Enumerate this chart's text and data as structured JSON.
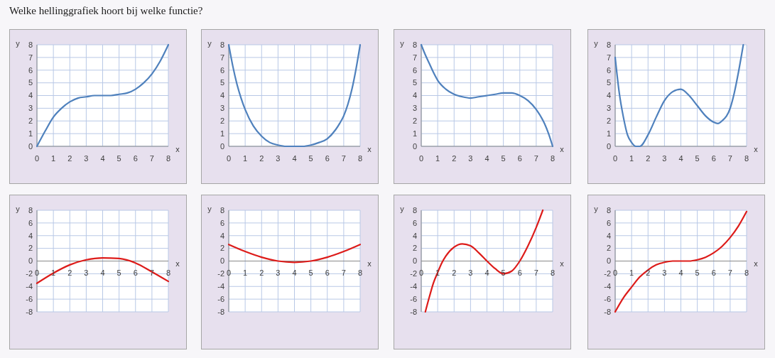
{
  "chart_data": [
    {
      "type": "other",
      "title": "Welke hellinggrafiek hoort bij welke functie?"
    },
    {
      "type": "line",
      "xlabel": "x",
      "ylabel": "y",
      "color": "#4f81bd",
      "grid": true,
      "xlim": [
        0,
        8
      ],
      "ylim": [
        0,
        8
      ],
      "xticks": [
        0,
        1,
        2,
        3,
        4,
        5,
        6,
        7,
        8
      ],
      "yticks": [
        0,
        1,
        2,
        3,
        4,
        5,
        6,
        7,
        8
      ],
      "x": [
        0,
        0.5,
        1,
        1.5,
        2,
        2.5,
        3,
        3.5,
        4,
        4.5,
        5,
        5.5,
        6,
        6.5,
        7,
        7.5,
        8
      ],
      "values": [
        0,
        1.2,
        2.3,
        3.0,
        3.5,
        3.8,
        3.9,
        4,
        4,
        4,
        4.1,
        4.2,
        4.5,
        5.0,
        5.7,
        6.7,
        8
      ]
    },
    {
      "type": "line",
      "xlabel": "x",
      "ylabel": "y",
      "color": "#4f81bd",
      "grid": true,
      "xlim": [
        0,
        8
      ],
      "ylim": [
        0,
        8
      ],
      "xticks": [
        0,
        1,
        2,
        3,
        4,
        5,
        6,
        7,
        8
      ],
      "yticks": [
        0,
        1,
        2,
        3,
        4,
        5,
        6,
        7,
        8
      ],
      "x": [
        0,
        0.25,
        0.5,
        0.75,
        1,
        1.5,
        2,
        2.5,
        3,
        3.5,
        4,
        4.5,
        5,
        5.5,
        6,
        6.5,
        6.75,
        7,
        7.25,
        7.5,
        7.75,
        8
      ],
      "values": [
        8,
        6.3,
        4.9,
        3.8,
        2.9,
        1.6,
        0.8,
        0.3,
        0.1,
        0,
        0,
        0,
        0.1,
        0.3,
        0.6,
        1.3,
        1.8,
        2.4,
        3.3,
        4.5,
        6.1,
        8
      ]
    },
    {
      "type": "line",
      "xlabel": "x",
      "ylabel": "y",
      "color": "#4f81bd",
      "grid": true,
      "xlim": [
        0,
        8
      ],
      "ylim": [
        0,
        8
      ],
      "xticks": [
        0,
        1,
        2,
        3,
        4,
        5,
        6,
        7,
        8
      ],
      "yticks": [
        0,
        1,
        2,
        3,
        4,
        5,
        6,
        7,
        8
      ],
      "x": [
        0,
        0.25,
        0.5,
        0.75,
        1,
        1.5,
        2,
        2.5,
        3,
        3.5,
        4,
        4.5,
        5,
        5.5,
        6,
        6.5,
        7,
        7.5,
        7.75,
        8
      ],
      "values": [
        8,
        7.2,
        6.5,
        5.8,
        5.2,
        4.5,
        4.1,
        3.9,
        3.8,
        3.9,
        4.0,
        4.1,
        4.2,
        4.2,
        4.0,
        3.6,
        2.9,
        1.8,
        1.0,
        0
      ]
    },
    {
      "type": "line",
      "xlabel": "x",
      "ylabel": "y",
      "color": "#4f81bd",
      "grid": true,
      "xlim": [
        0,
        8
      ],
      "ylim": [
        0,
        8
      ],
      "xticks": [
        0,
        1,
        2,
        3,
        4,
        5,
        6,
        7,
        8
      ],
      "yticks": [
        0,
        1,
        2,
        3,
        4,
        5,
        6,
        7,
        8
      ],
      "x": [
        0,
        0.25,
        0.5,
        0.75,
        1,
        1.25,
        1.5,
        2,
        2.5,
        3,
        3.5,
        4,
        4.5,
        5,
        5.5,
        6,
        6.25,
        6.5,
        7,
        7.25,
        7.5,
        7.8
      ],
      "values": [
        7,
        4.2,
        2.3,
        0.9,
        0.3,
        0,
        0,
        0.9,
        2.3,
        3.6,
        4.3,
        4.5,
        4.0,
        3.2,
        2.4,
        1.9,
        1.8,
        2.0,
        3.0,
        4.2,
        5.8,
        8
      ]
    },
    {
      "type": "line",
      "xlabel": "x",
      "ylabel": "y",
      "color": "#dd1c1a",
      "grid": true,
      "xlim": [
        0,
        8
      ],
      "ylim": [
        -8,
        8
      ],
      "xticks": [
        0,
        1,
        2,
        3,
        4,
        5,
        6,
        7,
        8
      ],
      "yticks": [
        -8,
        -6,
        -4,
        -2,
        0,
        2,
        4,
        6,
        8
      ],
      "x": [
        0,
        1,
        2,
        3,
        4,
        5,
        6,
        7,
        8
      ],
      "values": [
        -3.5,
        -1.9,
        -0.6,
        0.2,
        0.5,
        0.4,
        -0.3,
        -1.7,
        -3.2
      ]
    },
    {
      "type": "line",
      "xlabel": "x",
      "ylabel": "y",
      "color": "#dd1c1a",
      "grid": true,
      "xlim": [
        0,
        8
      ],
      "ylim": [
        -8,
        8
      ],
      "xticks": [
        0,
        1,
        2,
        3,
        4,
        5,
        6,
        7,
        8
      ],
      "yticks": [
        -8,
        -6,
        -4,
        -2,
        0,
        2,
        4,
        6,
        8
      ],
      "x": [
        0,
        1,
        2,
        3,
        4,
        5,
        6,
        7,
        8
      ],
      "values": [
        2.6,
        1.5,
        0.6,
        0,
        -0.2,
        0,
        0.6,
        1.5,
        2.6
      ]
    },
    {
      "type": "line",
      "xlabel": "x",
      "ylabel": "y",
      "color": "#dd1c1a",
      "grid": true,
      "xlim": [
        0,
        8
      ],
      "ylim": [
        -8,
        8
      ],
      "xticks": [
        0,
        1,
        2,
        3,
        4,
        5,
        6,
        7,
        8
      ],
      "yticks": [
        -8,
        -6,
        -4,
        -2,
        0,
        2,
        4,
        6,
        8
      ],
      "x": [
        0.25,
        0.5,
        0.75,
        1,
        1.25,
        1.5,
        2,
        2.5,
        3,
        3.5,
        4,
        4.5,
        5,
        5.5,
        6,
        6.5,
        7,
        7.4
      ],
      "values": [
        -8,
        -5.6,
        -3.4,
        -1.8,
        -0.3,
        0.8,
        2.2,
        2.7,
        2.4,
        1.3,
        0,
        -1.2,
        -2.0,
        -1.6,
        0,
        2.4,
        5.3,
        8
      ]
    },
    {
      "type": "line",
      "xlabel": "x",
      "ylabel": "y",
      "color": "#dd1c1a",
      "grid": true,
      "xlim": [
        0,
        8
      ],
      "ylim": [
        -8,
        8
      ],
      "xticks": [
        0,
        1,
        2,
        3,
        4,
        5,
        6,
        7,
        8
      ],
      "yticks": [
        -8,
        -6,
        -4,
        -2,
        0,
        2,
        4,
        6,
        8
      ],
      "x": [
        0,
        0.5,
        1,
        1.5,
        2,
        2.5,
        3,
        3.5,
        4,
        4.5,
        5,
        5.5,
        6,
        6.5,
        7,
        7.5,
        8
      ],
      "values": [
        -8,
        -5.8,
        -4.1,
        -2.5,
        -1.4,
        -0.6,
        -0.2,
        0,
        0,
        0,
        0.2,
        0.6,
        1.3,
        2.3,
        3.7,
        5.5,
        7.8
      ]
    }
  ]
}
